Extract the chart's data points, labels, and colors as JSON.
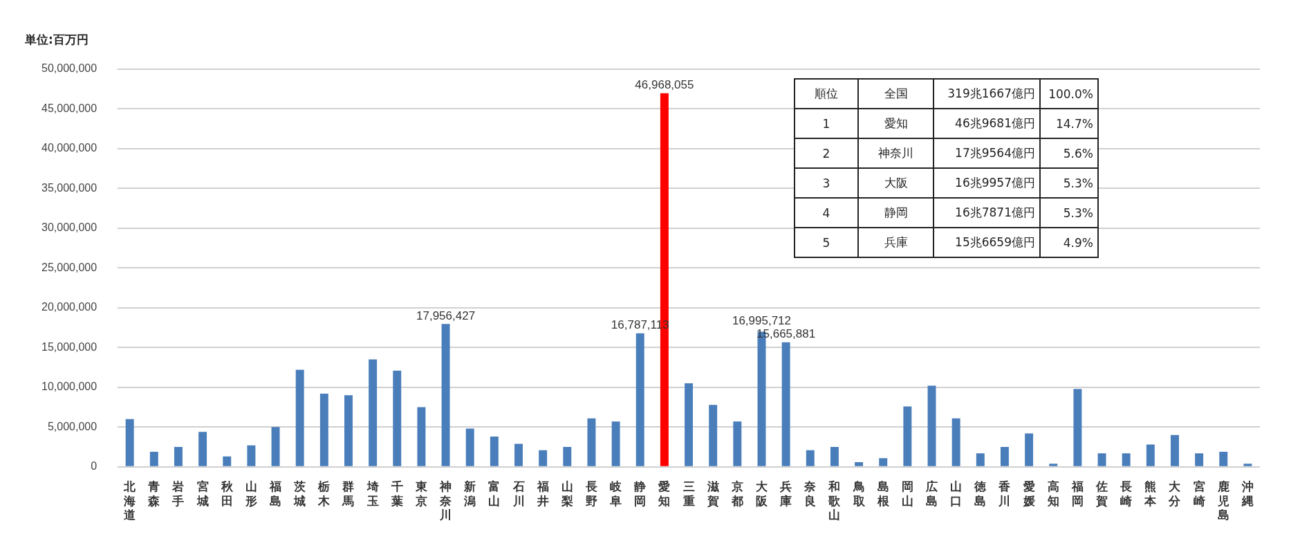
{
  "chart_data": {
    "type": "bar",
    "ylabel": "単位:百万円",
    "categories": [
      "北海道",
      "青森",
      "岩手",
      "宮城",
      "秋田",
      "山形",
      "福島",
      "茨城",
      "栃木",
      "群馬",
      "埼玉",
      "千葉",
      "東京",
      "神奈川",
      "新潟",
      "富山",
      "石川",
      "福井",
      "山梨",
      "長野",
      "岐阜",
      "静岡",
      "愛知",
      "三重",
      "滋賀",
      "京都",
      "大阪",
      "兵庫",
      "奈良",
      "和歌山",
      "鳥取",
      "島根",
      "岡山",
      "広島",
      "山口",
      "徳島",
      "香川",
      "愛媛",
      "高知",
      "福岡",
      "佐賀",
      "長崎",
      "熊本",
      "大分",
      "宮崎",
      "鹿児島",
      "沖縄"
    ],
    "values": [
      6000000,
      1900000,
      2500000,
      4400000,
      1300000,
      2700000,
      5000000,
      12200000,
      9200000,
      9000000,
      13500000,
      12100000,
      7500000,
      17956427,
      4800000,
      3800000,
      2900000,
      2100000,
      2500000,
      6100000,
      5700000,
      16787113,
      46968055,
      10500000,
      7800000,
      5700000,
      16995712,
      15665881,
      2100000,
      2500000,
      600000,
      1100000,
      7600000,
      10200000,
      6100000,
      1700000,
      2500000,
      4200000,
      400000,
      9800000,
      1700000,
      1700000,
      2800000,
      4000000,
      1700000,
      1900000,
      400000
    ],
    "colors": [
      "#4a7ebb",
      "#4a7ebb",
      "#4a7ebb",
      "#4a7ebb",
      "#4a7ebb",
      "#4a7ebb",
      "#4a7ebb",
      "#4a7ebb",
      "#4a7ebb",
      "#4a7ebb",
      "#4a7ebb",
      "#4a7ebb",
      "#4a7ebb",
      "#4a7ebb",
      "#4a7ebb",
      "#4a7ebb",
      "#4a7ebb",
      "#4a7ebb",
      "#4a7ebb",
      "#4a7ebb",
      "#4a7ebb",
      "#4a7ebb",
      "#ff0000",
      "#4a7ebb",
      "#4a7ebb",
      "#4a7ebb",
      "#4a7ebb",
      "#4a7ebb",
      "#4a7ebb",
      "#4a7ebb",
      "#4a7ebb",
      "#4a7ebb",
      "#4a7ebb",
      "#4a7ebb",
      "#4a7ebb",
      "#4a7ebb",
      "#4a7ebb",
      "#4a7ebb",
      "#4a7ebb",
      "#4a7ebb",
      "#4a7ebb",
      "#4a7ebb",
      "#4a7ebb",
      "#4a7ebb",
      "#4a7ebb",
      "#4a7ebb",
      "#4a7ebb"
    ],
    "value_labels": [
      null,
      null,
      null,
      null,
      null,
      null,
      null,
      null,
      null,
      null,
      null,
      null,
      null,
      "17,956,427",
      null,
      null,
      null,
      null,
      null,
      null,
      null,
      "16,787,113",
      "46,968,055",
      null,
      null,
      null,
      "16,995,712",
      "15,665,881",
      null,
      null,
      null,
      null,
      null,
      null,
      null,
      null,
      null,
      null,
      null,
      null,
      null,
      null,
      null,
      null,
      null,
      null,
      null
    ],
    "ylim": [
      0,
      50000000
    ],
    "yticks": [
      0,
      {
        "value": 5000000,
        "label": "5,000,000"
      },
      {
        "value": 10000000,
        "label": "10,000,000"
      },
      {
        "value": 15000000,
        "label": "15,000,000"
      },
      {
        "value": 20000000,
        "label": "20,000,000"
      },
      {
        "value": 25000000,
        "label": "25,000,000"
      },
      {
        "value": 30000000,
        "label": "30,000,000"
      },
      {
        "value": 35000000,
        "label": "35,000,000"
      },
      {
        "value": 40000000,
        "label": "40,000,000"
      },
      {
        "value": 45000000,
        "label": "45,000,000"
      },
      {
        "value": 50000000,
        "label": "50,000,000"
      }
    ],
    "grid": "y",
    "legend": false,
    "annotations": [
      "順位",
      "全国",
      "319兆1667億円",
      "100.0%",
      "1",
      "愛知",
      "46兆9681億円",
      "14.7%",
      "2",
      "神奈川",
      "17兆9564億円",
      "5.6%",
      "3",
      "大阪",
      "16兆9957億円",
      "5.3%",
      "4",
      "静岡",
      "16兆7871億円",
      "5.3%",
      "5",
      "兵庫",
      "15兆6659億円",
      "4.9%"
    ]
  }
}
